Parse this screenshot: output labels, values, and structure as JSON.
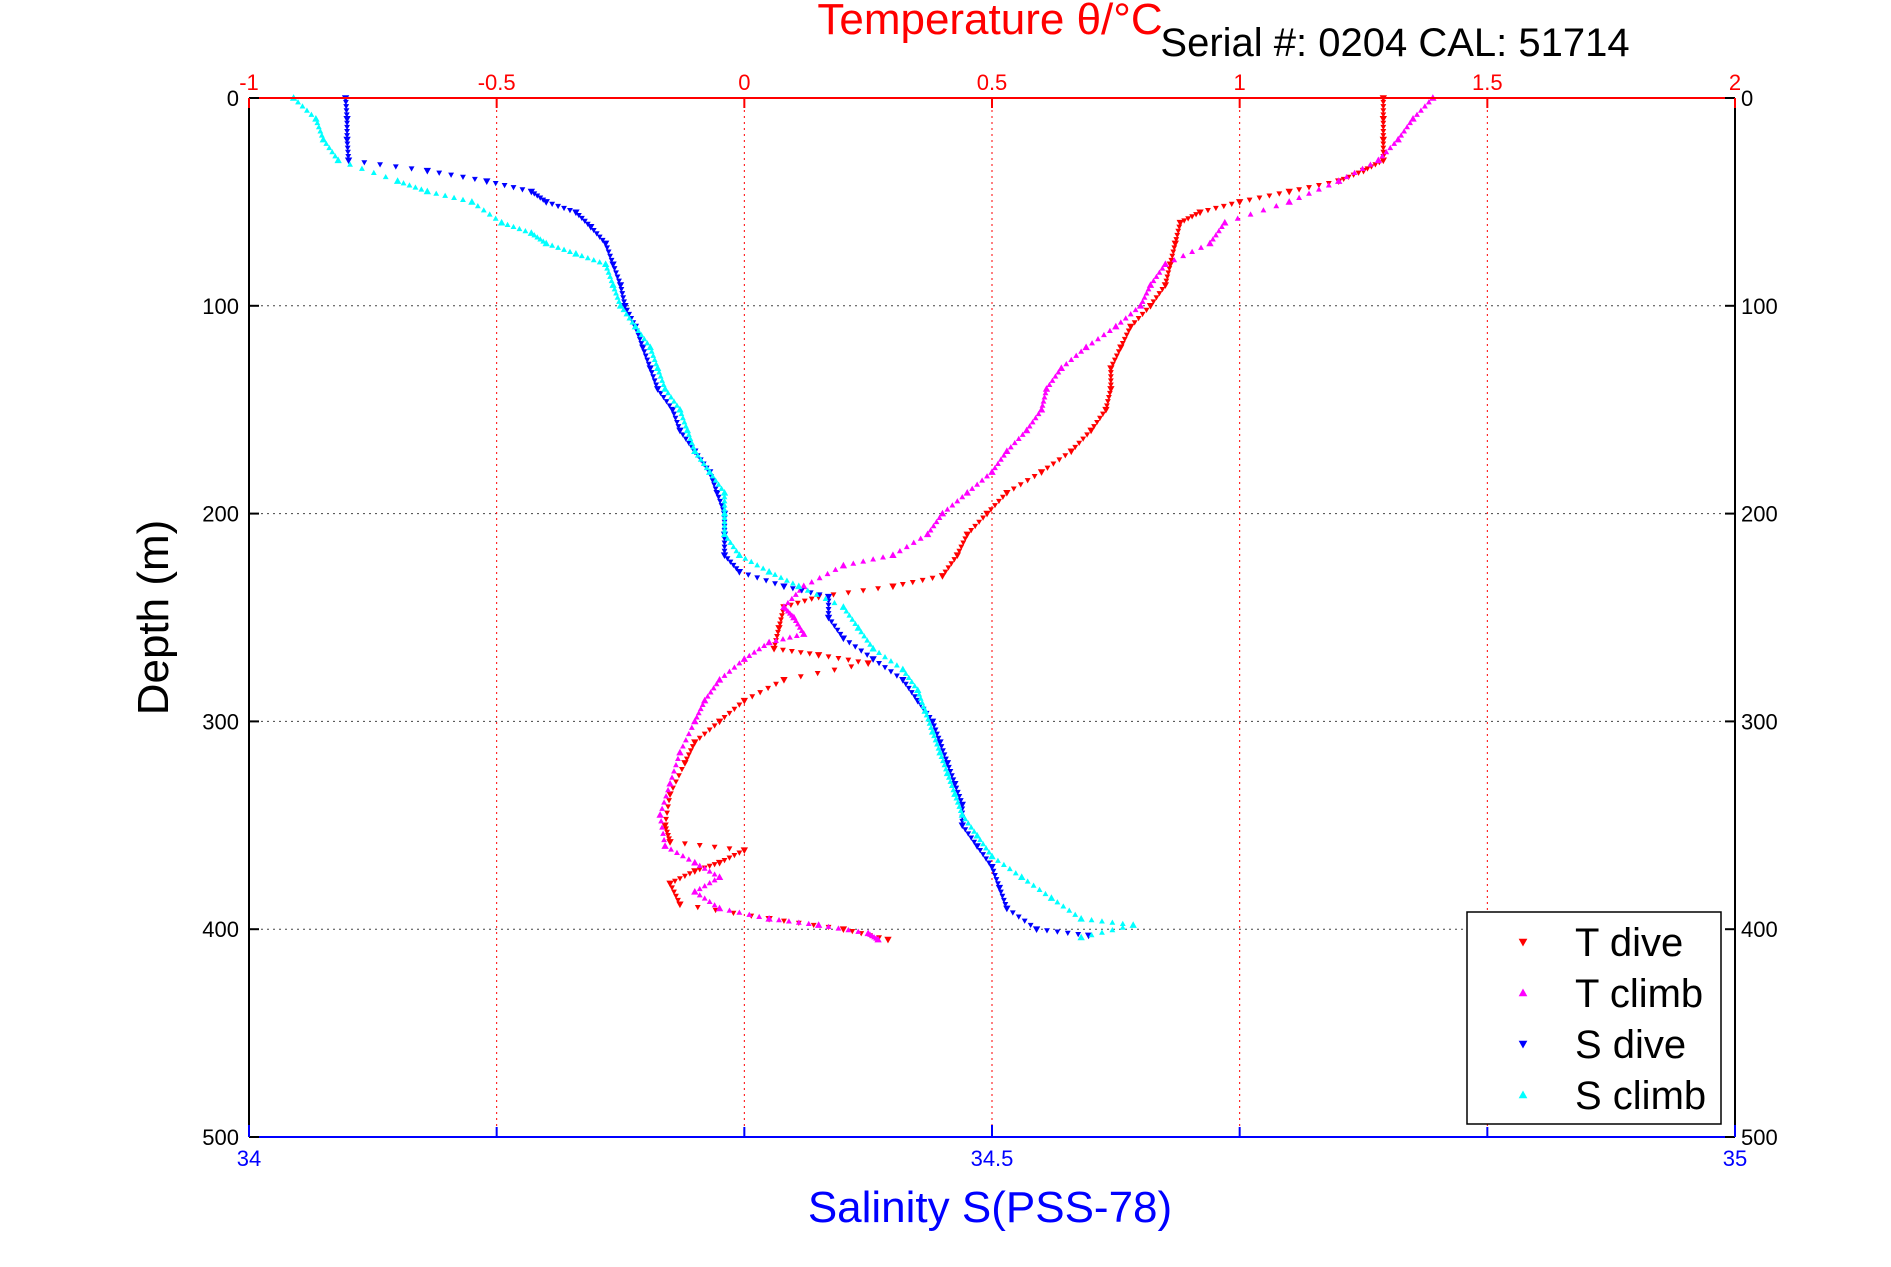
{
  "chart_data": {
    "type": "scatter",
    "title": "Temperature θ/°C",
    "subtitle": "Serial #: 0204  CAL: 51714",
    "ylabel": "Depth (m)",
    "xlabel": "Salinity S(PSS-78)",
    "y_axis": {
      "range": [
        0,
        500
      ],
      "reversed": true,
      "ticks": [
        0,
        100,
        200,
        300,
        400,
        500
      ],
      "tick_labels": [
        "0",
        "100",
        "200",
        "300",
        "400",
        "500"
      ]
    },
    "x_top_axis": {
      "quantity": "temperature",
      "range": [
        -1,
        2
      ],
      "ticks": [
        -1,
        -0.5,
        0,
        0.5,
        1,
        1.5,
        2
      ],
      "tick_labels": [
        "-1",
        "-0.5",
        "0",
        "0.5",
        "1",
        "1.5",
        "2"
      ],
      "color": "#ff0000"
    },
    "x_bottom_axis": {
      "quantity": "salinity",
      "range": [
        34,
        35
      ],
      "ticks": [
        34,
        34.5,
        35
      ],
      "tick_labels": [
        "34",
        "34.5",
        "35"
      ],
      "color": "#0000ff"
    },
    "grid": true,
    "legend": {
      "placement": "bottom-right",
      "entries": [
        "T dive",
        "T climb",
        "S dive",
        "S climb"
      ]
    },
    "series": [
      {
        "name": "T dive",
        "axis": "temperature",
        "color": "#ff0000",
        "marker": "triangle-down",
        "points": [
          [
            1.29,
            0
          ],
          [
            1.29,
            10
          ],
          [
            1.29,
            20
          ],
          [
            1.29,
            30
          ],
          [
            1.25,
            35
          ],
          [
            1.2,
            40
          ],
          [
            1.1,
            45
          ],
          [
            1,
            50
          ],
          [
            0.92,
            55
          ],
          [
            0.88,
            60
          ],
          [
            0.87,
            70
          ],
          [
            0.86,
            80
          ],
          [
            0.85,
            90
          ],
          [
            0.82,
            100
          ],
          [
            0.78,
            110
          ],
          [
            0.76,
            120
          ],
          [
            0.74,
            130
          ],
          [
            0.74,
            140
          ],
          [
            0.73,
            150
          ],
          [
            0.7,
            160
          ],
          [
            0.66,
            170
          ],
          [
            0.6,
            180
          ],
          [
            0.53,
            190
          ],
          [
            0.49,
            200
          ],
          [
            0.45,
            210
          ],
          [
            0.43,
            220
          ],
          [
            0.4,
            230
          ],
          [
            0.3,
            235
          ],
          [
            0.15,
            240
          ],
          [
            0.08,
            245
          ],
          [
            0.07,
            255
          ],
          [
            0.06,
            265
          ],
          [
            0.15,
            268
          ],
          [
            0.25,
            272
          ],
          [
            0.08,
            280
          ],
          [
            0,
            290
          ],
          [
            -0.05,
            300
          ],
          [
            -0.1,
            310
          ],
          [
            -0.12,
            320
          ],
          [
            -0.15,
            335
          ],
          [
            -0.16,
            350
          ],
          [
            -0.15,
            358
          ],
          [
            0,
            362
          ],
          [
            -0.05,
            368
          ],
          [
            -0.1,
            372
          ],
          [
            -0.15,
            378
          ],
          [
            -0.13,
            388
          ],
          [
            0.05,
            395
          ],
          [
            0.2,
            400
          ],
          [
            0.29,
            405
          ]
        ]
      },
      {
        "name": "T climb",
        "axis": "temperature",
        "color": "#ff00ff",
        "marker": "triangle-up",
        "points": [
          [
            1.39,
            0
          ],
          [
            1.35,
            10
          ],
          [
            1.32,
            20
          ],
          [
            1.28,
            30
          ],
          [
            1.2,
            40
          ],
          [
            1.1,
            50
          ],
          [
            0.97,
            60
          ],
          [
            0.94,
            70
          ],
          [
            0.85,
            80
          ],
          [
            0.82,
            90
          ],
          [
            0.8,
            100
          ],
          [
            0.75,
            110
          ],
          [
            0.69,
            120
          ],
          [
            0.64,
            130
          ],
          [
            0.61,
            140
          ],
          [
            0.6,
            150
          ],
          [
            0.57,
            160
          ],
          [
            0.53,
            170
          ],
          [
            0.5,
            180
          ],
          [
            0.45,
            190
          ],
          [
            0.4,
            200
          ],
          [
            0.37,
            210
          ],
          [
            0.3,
            220
          ],
          [
            0.2,
            225
          ],
          [
            0.12,
            235
          ],
          [
            0.08,
            245
          ],
          [
            0.1,
            250
          ],
          [
            0.12,
            258
          ],
          [
            0.05,
            262
          ],
          [
            0,
            270
          ],
          [
            -0.05,
            280
          ],
          [
            -0.08,
            290
          ],
          [
            -0.1,
            300
          ],
          [
            -0.13,
            315
          ],
          [
            -0.15,
            330
          ],
          [
            -0.17,
            345
          ],
          [
            -0.16,
            360
          ],
          [
            -0.1,
            368
          ],
          [
            -0.05,
            375
          ],
          [
            -0.1,
            382
          ],
          [
            -0.05,
            390
          ],
          [
            0.05,
            395
          ],
          [
            0.15,
            398
          ],
          [
            0.25,
            402
          ],
          [
            0.27,
            405
          ]
        ]
      },
      {
        "name": "S dive",
        "axis": "salinity",
        "color": "#0000ff",
        "marker": "triangle-down",
        "points": [
          [
            34.065,
            0
          ],
          [
            34.066,
            10
          ],
          [
            34.066,
            20
          ],
          [
            34.067,
            30
          ],
          [
            34.12,
            35
          ],
          [
            34.16,
            40
          ],
          [
            34.19,
            45
          ],
          [
            34.2,
            50
          ],
          [
            34.22,
            55
          ],
          [
            34.23,
            62
          ],
          [
            34.24,
            70
          ],
          [
            34.245,
            80
          ],
          [
            34.25,
            90
          ],
          [
            34.253,
            100
          ],
          [
            34.26,
            110
          ],
          [
            34.265,
            120
          ],
          [
            34.27,
            130
          ],
          [
            34.275,
            140
          ],
          [
            34.285,
            150
          ],
          [
            34.29,
            160
          ],
          [
            34.3,
            170
          ],
          [
            34.31,
            180
          ],
          [
            34.315,
            190
          ],
          [
            34.32,
            200
          ],
          [
            34.32,
            210
          ],
          [
            34.32,
            220
          ],
          [
            34.33,
            228
          ],
          [
            34.36,
            235
          ],
          [
            34.39,
            240
          ],
          [
            34.39,
            250
          ],
          [
            34.4,
            260
          ],
          [
            34.42,
            270
          ],
          [
            34.44,
            280
          ],
          [
            34.45,
            290
          ],
          [
            34.46,
            300
          ],
          [
            34.465,
            310
          ],
          [
            34.47,
            320
          ],
          [
            34.475,
            330
          ],
          [
            34.48,
            340
          ],
          [
            34.48,
            350
          ],
          [
            34.49,
            360
          ],
          [
            34.5,
            370
          ],
          [
            34.505,
            380
          ],
          [
            34.51,
            390
          ],
          [
            34.53,
            400
          ],
          [
            34.565,
            403
          ]
        ]
      },
      {
        "name": "S climb",
        "axis": "salinity",
        "color": "#00ffff",
        "marker": "triangle-up",
        "points": [
          [
            34.03,
            0
          ],
          [
            34.045,
            10
          ],
          [
            34.05,
            20
          ],
          [
            34.06,
            30
          ],
          [
            34.1,
            40
          ],
          [
            34.12,
            45
          ],
          [
            34.15,
            50
          ],
          [
            34.17,
            60
          ],
          [
            34.19,
            65
          ],
          [
            34.2,
            70
          ],
          [
            34.22,
            75
          ],
          [
            34.24,
            80
          ],
          [
            34.245,
            90
          ],
          [
            34.25,
            100
          ],
          [
            34.26,
            110
          ],
          [
            34.27,
            120
          ],
          [
            34.275,
            130
          ],
          [
            34.28,
            140
          ],
          [
            34.29,
            150
          ],
          [
            34.295,
            160
          ],
          [
            34.3,
            170
          ],
          [
            34.31,
            180
          ],
          [
            34.32,
            190
          ],
          [
            34.32,
            200
          ],
          [
            34.32,
            210
          ],
          [
            34.33,
            220
          ],
          [
            34.35,
            228
          ],
          [
            34.37,
            235
          ],
          [
            34.4,
            245
          ],
          [
            34.41,
            255
          ],
          [
            34.42,
            265
          ],
          [
            34.44,
            275
          ],
          [
            34.45,
            285
          ],
          [
            34.455,
            295
          ],
          [
            34.46,
            305
          ],
          [
            34.465,
            315
          ],
          [
            34.47,
            325
          ],
          [
            34.475,
            335
          ],
          [
            34.48,
            345
          ],
          [
            34.49,
            355
          ],
          [
            34.5,
            365
          ],
          [
            34.52,
            375
          ],
          [
            34.54,
            385
          ],
          [
            34.56,
            395
          ],
          [
            34.595,
            398
          ],
          [
            34.56,
            404
          ]
        ]
      }
    ]
  }
}
